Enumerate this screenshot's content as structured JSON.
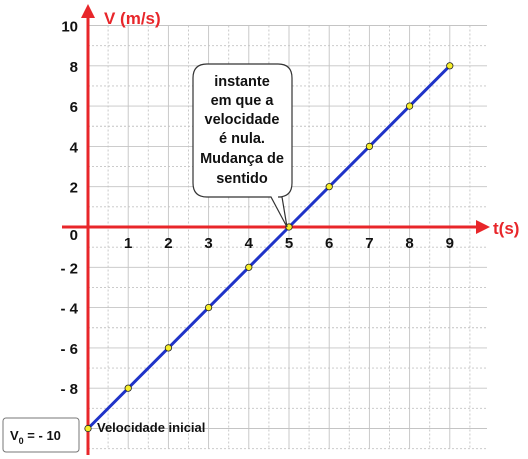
{
  "chart_data": {
    "type": "line",
    "xlabel": "t(s)",
    "ylabel": "V (m/s)",
    "xlim": [
      0,
      10
    ],
    "ylim": [
      -11,
      10
    ],
    "x_ticks": [
      1,
      2,
      3,
      4,
      5,
      6,
      7,
      8,
      9
    ],
    "y_ticks": [
      10,
      8,
      6,
      4,
      2,
      0,
      -2,
      -4,
      -6,
      -8
    ],
    "x_tick_labels": [
      "1",
      "2",
      "3",
      "4",
      "5",
      "6",
      "7",
      "8",
      "9"
    ],
    "y_tick_labels": [
      "10",
      "8",
      "6",
      "4",
      "2",
      "0",
      "- 2",
      "- 4",
      "- 6",
      "- 8"
    ],
    "grid": true,
    "series": [
      {
        "x": [
          0,
          1,
          2,
          3,
          4,
          5,
          6,
          7,
          8,
          9
        ],
        "y": [
          -10,
          -8,
          -6,
          -4,
          -2,
          0,
          2,
          4,
          6,
          8
        ]
      }
    ],
    "annotations": {
      "callout_lines": [
        "instante",
        "em que a",
        "velocidade",
        "é nula.",
        "Mudança de",
        "sentido"
      ],
      "initial_label": "Velocidade inicial",
      "v0_symbol": "V",
      "v0_subscript": "0",
      "v0_value": " = - 10"
    }
  },
  "colors": {
    "axis": "#e8262a",
    "line": "#1f33c8",
    "point_fill": "#f7ef2a",
    "grid": "#c4c4c4"
  }
}
